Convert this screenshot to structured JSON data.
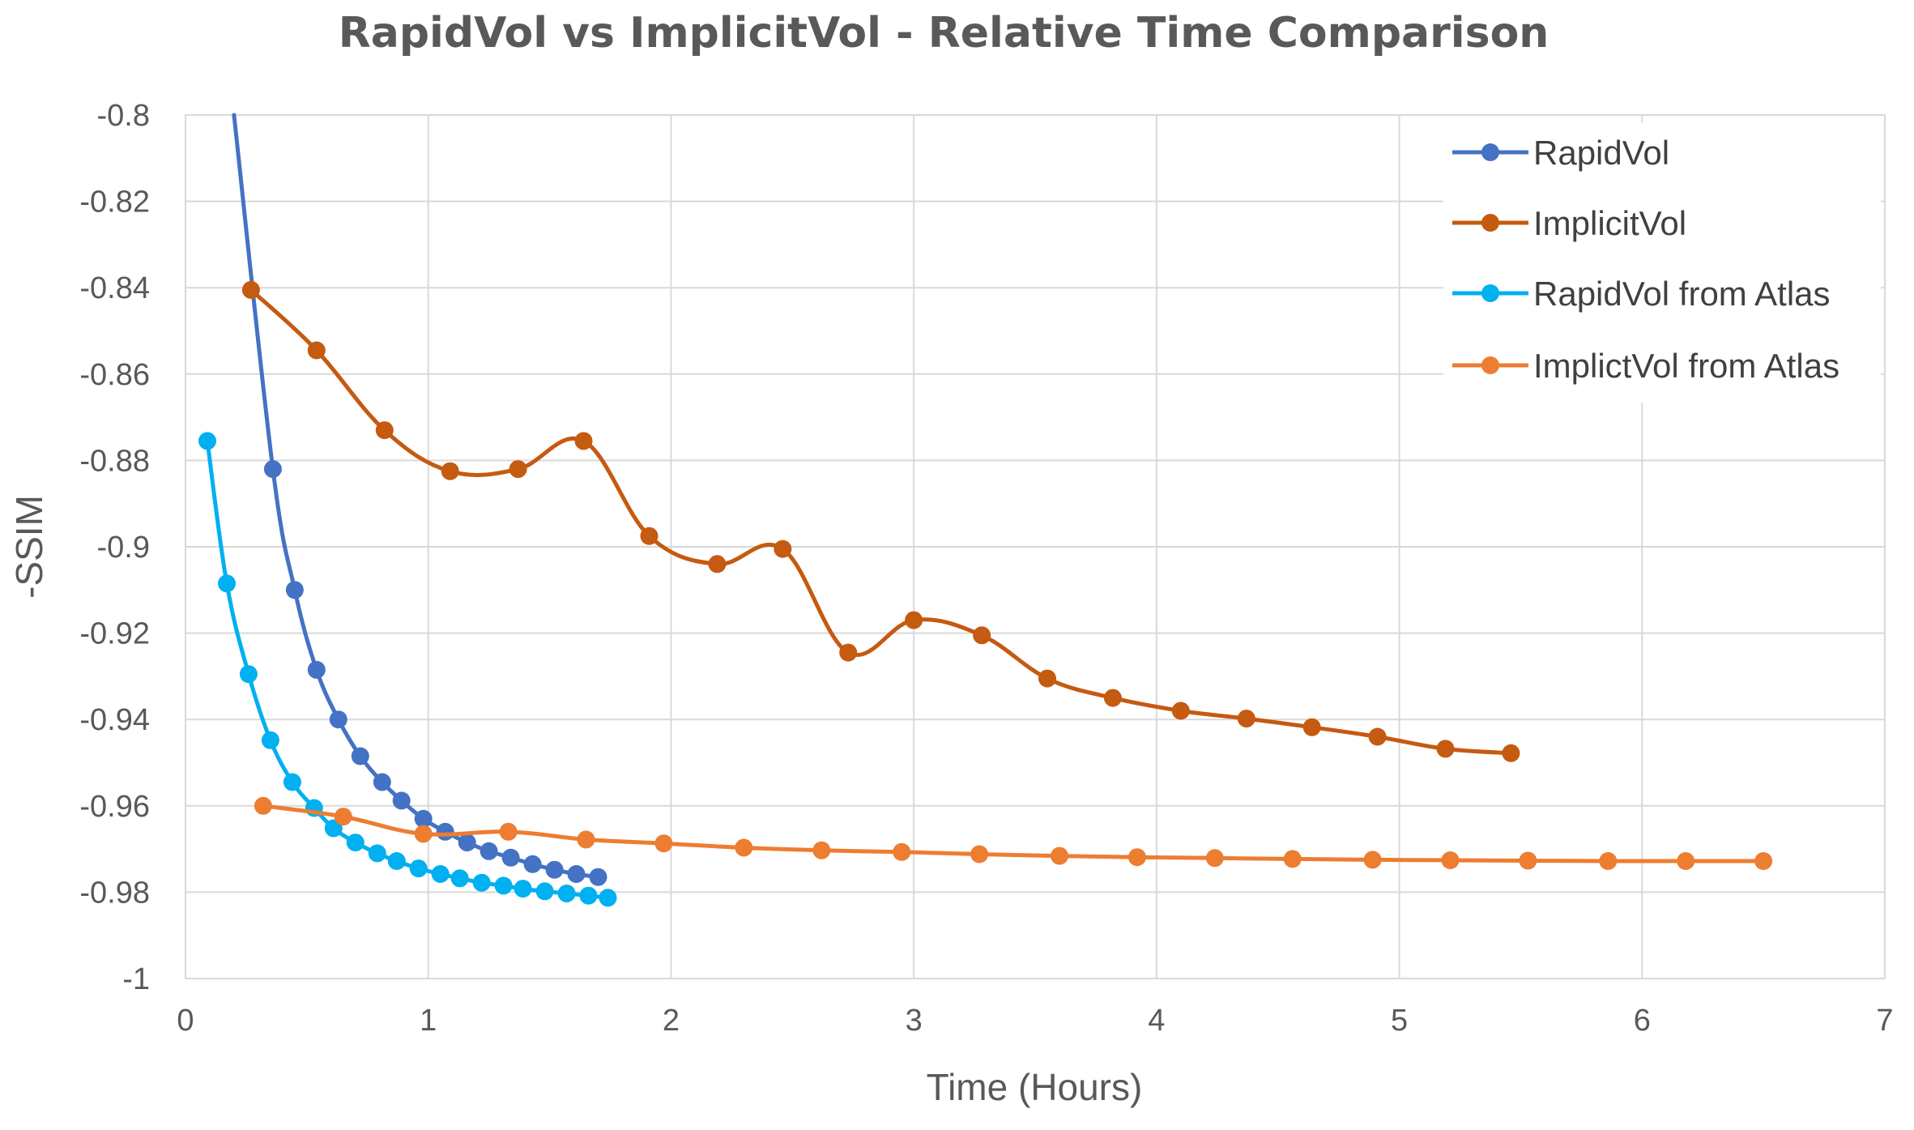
{
  "chart_data": {
    "type": "line",
    "title": "RapidVol vs ImplicitVol - Relative Time Comparison",
    "xlabel": "Time (Hours)",
    "ylabel": "-SSIM",
    "xlim": [
      0,
      7
    ],
    "ylim": [
      -1,
      -0.8
    ],
    "x_ticks": [
      0,
      1,
      2,
      3,
      4,
      5,
      6,
      7
    ],
    "x_tick_labels": [
      "0",
      "1",
      "2",
      "3",
      "4",
      "5",
      "6",
      "7"
    ],
    "y_ticks": [
      -0.8,
      -0.82,
      -0.84,
      -0.86,
      -0.88,
      -0.9,
      -0.92,
      -0.94,
      -0.96,
      -0.98,
      -1
    ],
    "y_tick_labels": [
      "-0.8",
      "-0.82",
      "-0.84",
      "-0.86",
      "-0.88",
      "-0.9",
      "-0.92",
      "-0.94",
      "-0.96",
      "-0.98",
      "-1"
    ],
    "grid": true,
    "legend_position": "top-right",
    "series": [
      {
        "name": "RapidVol",
        "color": "#4472C4",
        "line_start": [
          0.2,
          -0.8
        ],
        "x": [
          0.36,
          0.45,
          0.54,
          0.63,
          0.72,
          0.81,
          0.89,
          0.98,
          1.07,
          1.16,
          1.25,
          1.34,
          1.43,
          1.52,
          1.61,
          1.7
        ],
        "y": [
          -0.882,
          -0.91,
          -0.9285,
          -0.94,
          -0.9485,
          -0.9545,
          -0.9588,
          -0.963,
          -0.966,
          -0.9685,
          -0.9705,
          -0.972,
          -0.9735,
          -0.9748,
          -0.9758,
          -0.9765
        ]
      },
      {
        "name": "ImplicitVol",
        "color": "#C55A11",
        "x": [
          0.27,
          0.54,
          0.82,
          1.09,
          1.37,
          1.64,
          1.91,
          2.19,
          2.46,
          2.73,
          3.0,
          3.28,
          3.55,
          3.82,
          4.1,
          4.37,
          4.64,
          4.91,
          5.19,
          5.46
        ],
        "y": [
          -0.8405,
          -0.8545,
          -0.873,
          -0.8825,
          -0.882,
          -0.8755,
          -0.8975,
          -0.904,
          -0.9005,
          -0.9245,
          -0.917,
          -0.9205,
          -0.9305,
          -0.935,
          -0.938,
          -0.9398,
          -0.9418,
          -0.944,
          -0.9468,
          -0.9478
        ]
      },
      {
        "name": "RapidVol from Atlas",
        "color": "#00B0F0",
        "x": [
          0.09,
          0.17,
          0.26,
          0.35,
          0.44,
          0.53,
          0.61,
          0.7,
          0.79,
          0.87,
          0.96,
          1.05,
          1.13,
          1.22,
          1.31,
          1.39,
          1.48,
          1.57,
          1.66,
          1.74
        ],
        "y": [
          -0.8755,
          -0.9085,
          -0.9295,
          -0.9448,
          -0.9545,
          -0.9605,
          -0.9652,
          -0.9685,
          -0.971,
          -0.9728,
          -0.9745,
          -0.9758,
          -0.9768,
          -0.9778,
          -0.9785,
          -0.9792,
          -0.9798,
          -0.9803,
          -0.9808,
          -0.9813
        ]
      },
      {
        "name": "ImplictVol from Atlas",
        "color": "#ED7D31",
        "x": [
          0.32,
          0.65,
          0.98,
          1.33,
          1.65,
          1.97,
          2.3,
          2.62,
          2.95,
          3.27,
          3.6,
          3.92,
          4.24,
          4.56,
          4.89,
          5.21,
          5.53,
          5.86,
          6.18,
          6.5
        ],
        "y": [
          -0.96,
          -0.9625,
          -0.9665,
          -0.966,
          -0.9678,
          -0.9687,
          -0.9697,
          -0.9703,
          -0.9707,
          -0.9712,
          -0.9716,
          -0.9719,
          -0.9721,
          -0.9723,
          -0.9725,
          -0.9726,
          -0.9727,
          -0.9728,
          -0.9728,
          -0.9728
        ]
      }
    ]
  }
}
